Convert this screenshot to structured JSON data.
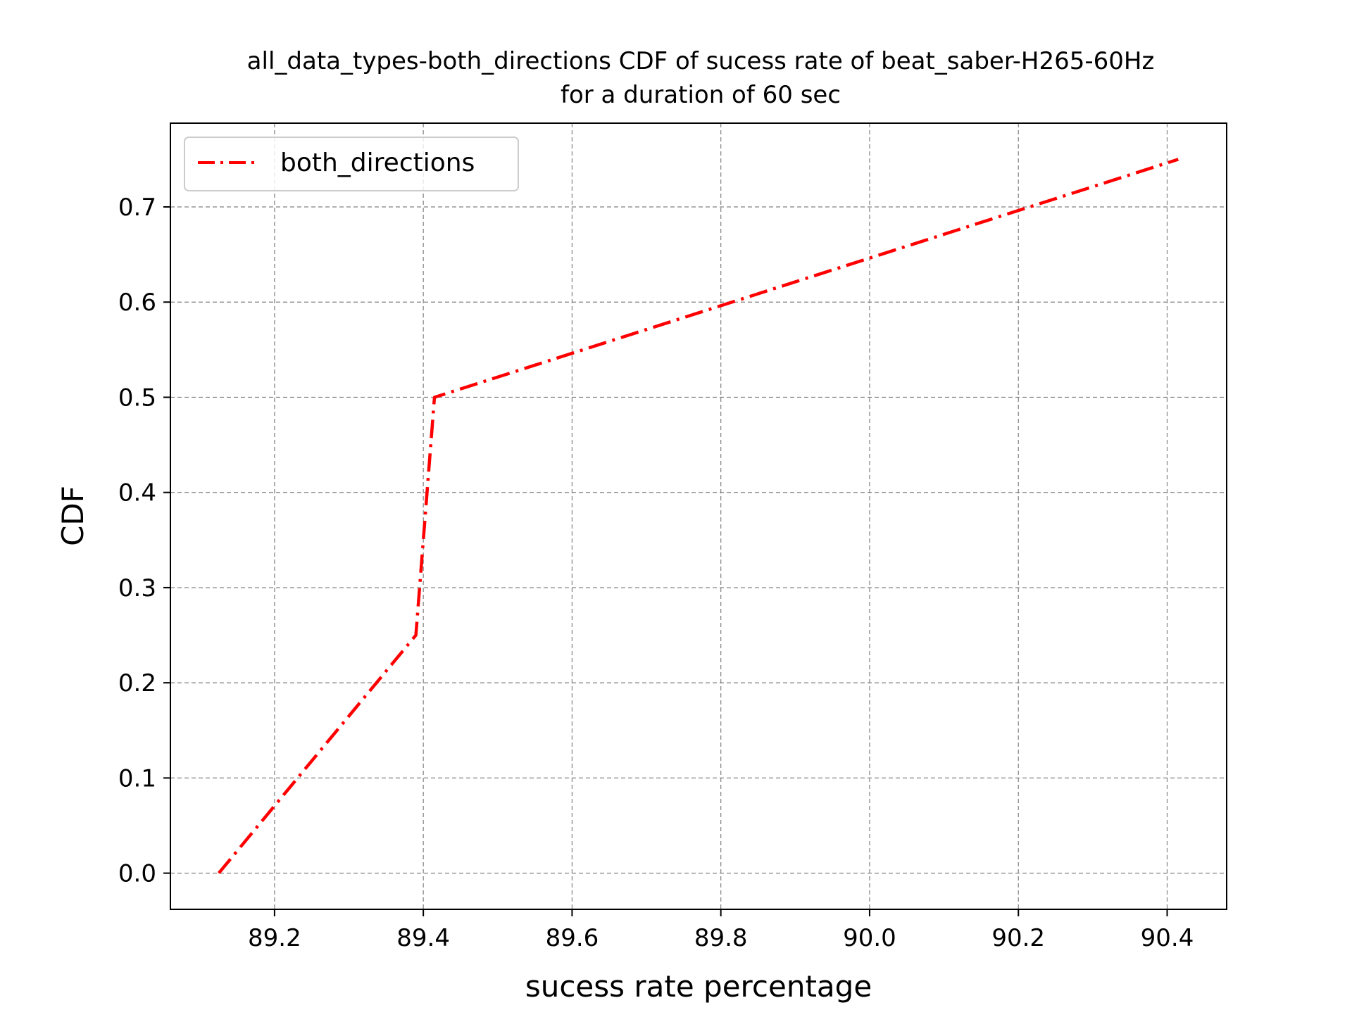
{
  "chart_data": {
    "type": "line",
    "title": "all_data_types-both_directions CDF of sucess rate of beat_saber-H265-60Hz",
    "subtitle": "for a duration of 60 sec",
    "xlabel": "sucess rate percentage",
    "ylabel": "CDF",
    "xlim": [
      89.06,
      90.48
    ],
    "ylim": [
      -0.038,
      0.788
    ],
    "x_ticks": [
      89.2,
      89.4,
      89.6,
      89.8,
      90.0,
      90.2,
      90.4
    ],
    "x_tick_labels": [
      "89.2",
      "89.4",
      "89.6",
      "89.8",
      "90.0",
      "90.2",
      "90.4"
    ],
    "y_ticks": [
      0.0,
      0.1,
      0.2,
      0.3,
      0.4,
      0.5,
      0.6,
      0.7
    ],
    "y_tick_labels": [
      "0.0",
      "0.1",
      "0.2",
      "0.3",
      "0.4",
      "0.5",
      "0.6",
      "0.7"
    ],
    "grid": true,
    "legend_position": "top-left",
    "series": [
      {
        "name": "both_directions",
        "color": "#ff0000",
        "line_style": "dash-dot",
        "x": [
          89.125,
          89.39,
          89.415,
          90.415
        ],
        "y": [
          0.0,
          0.25,
          0.5,
          0.75
        ]
      }
    ]
  }
}
